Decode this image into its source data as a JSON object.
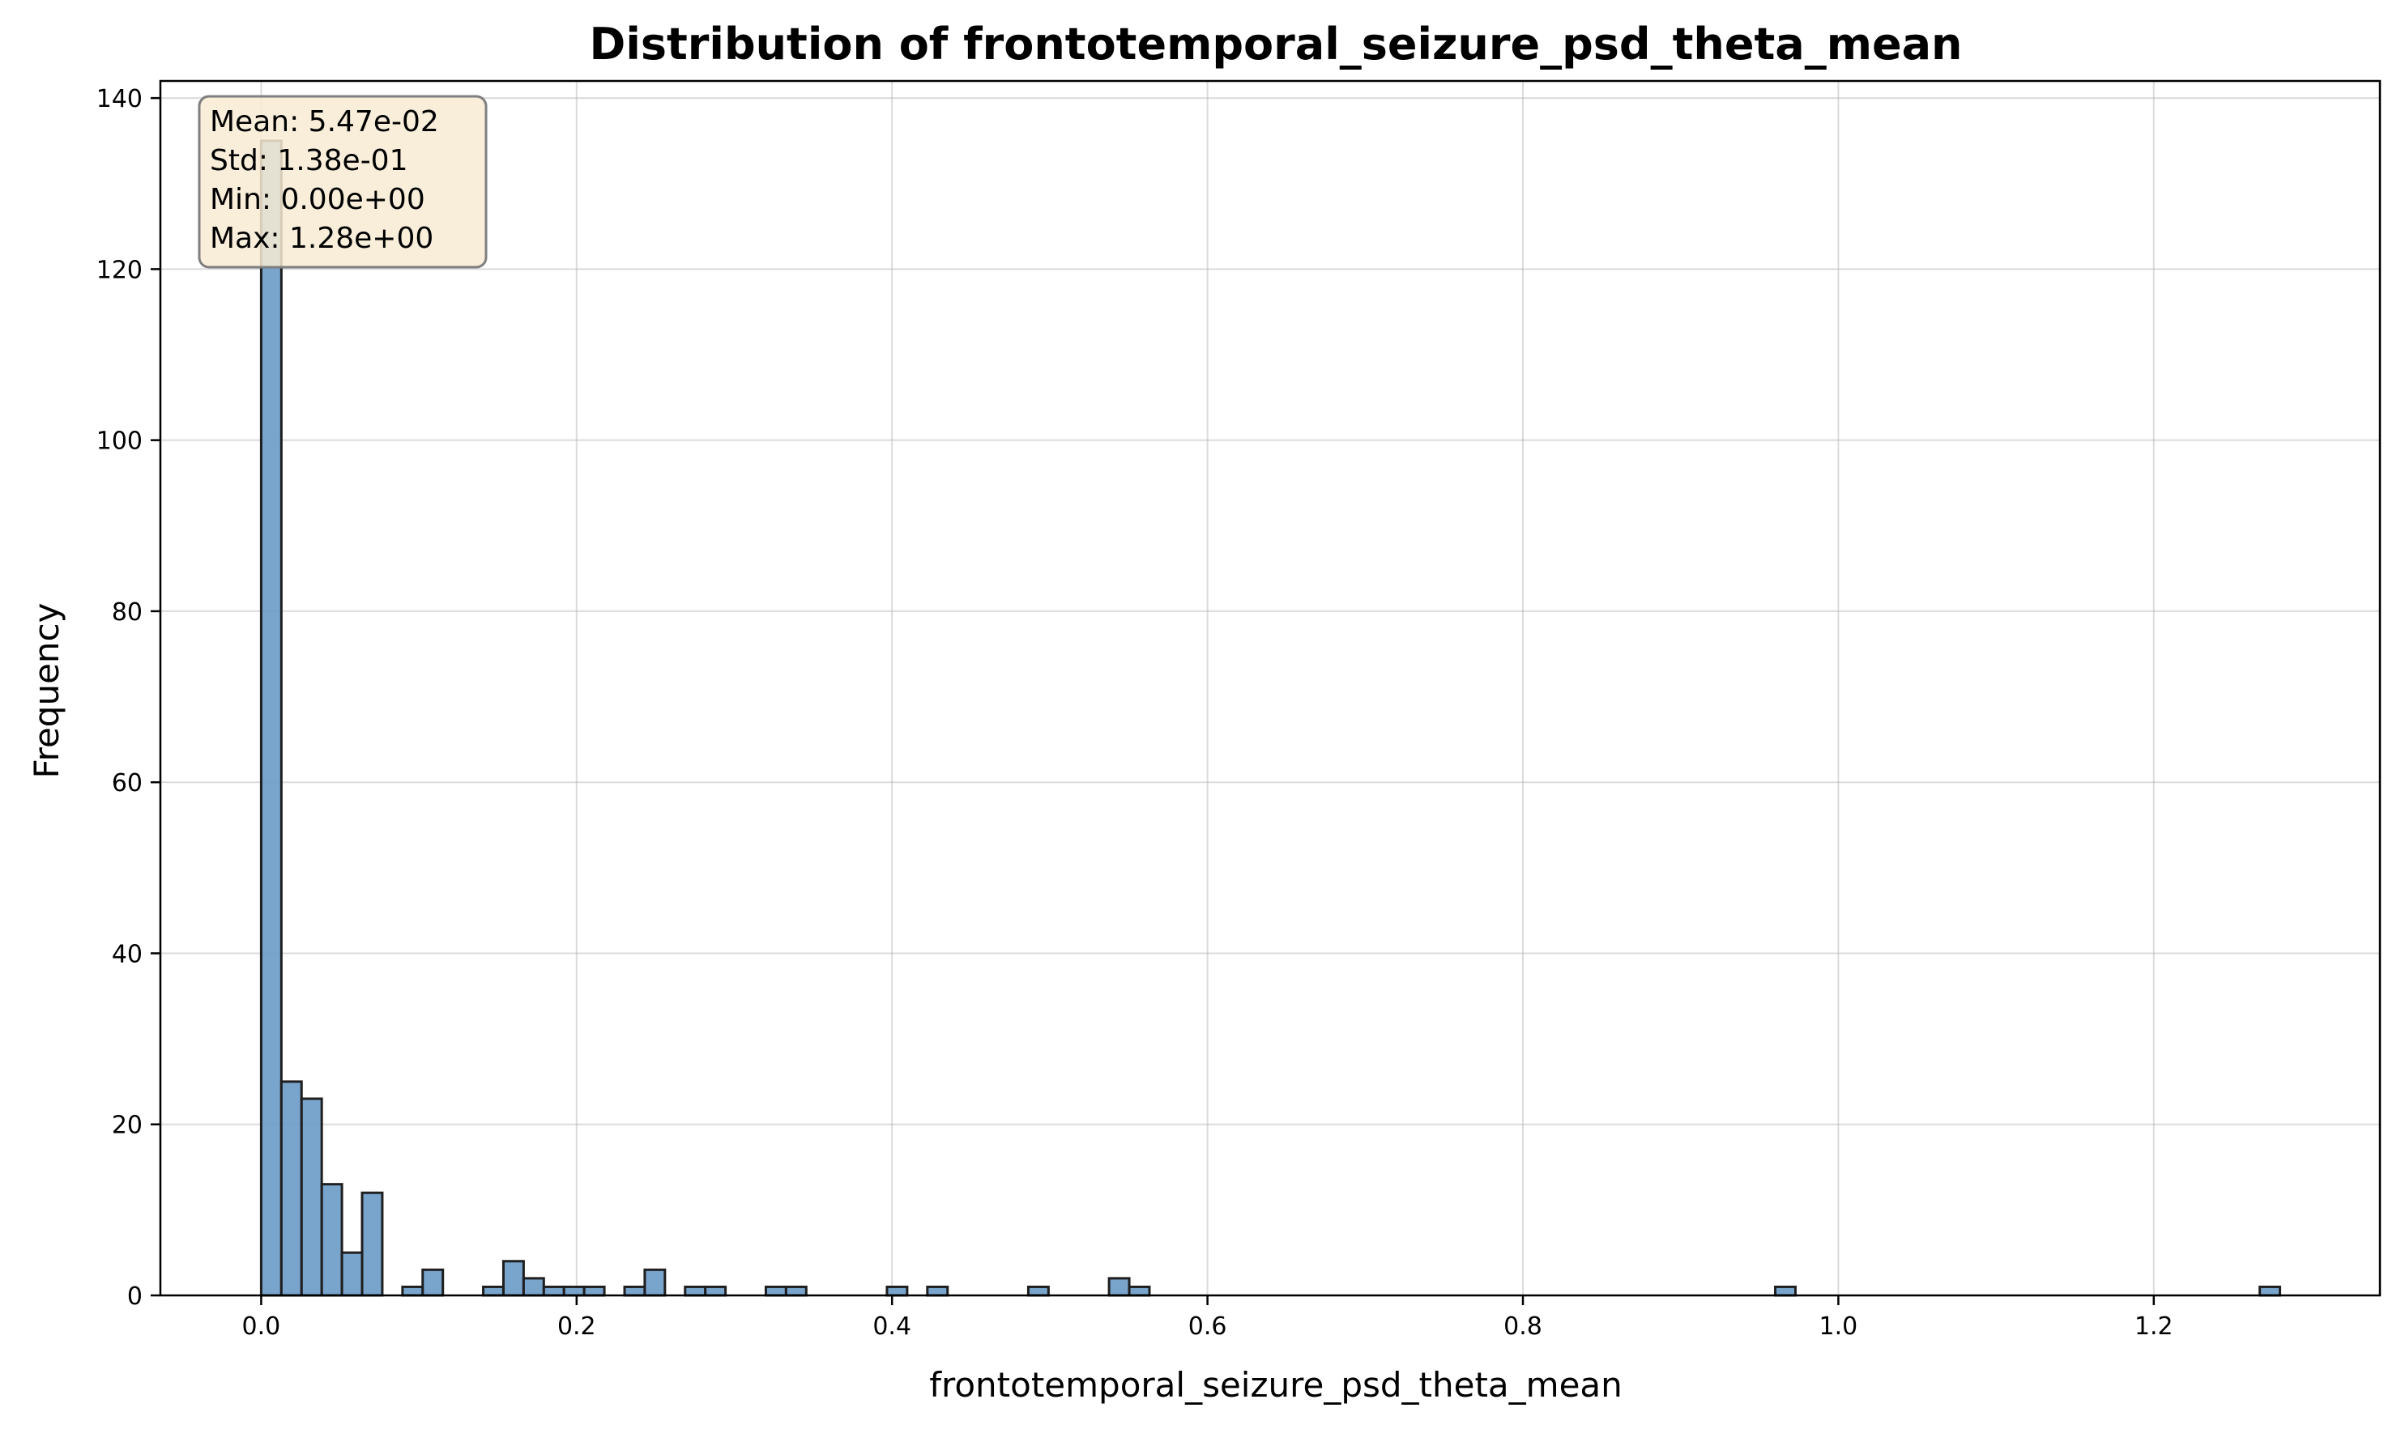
{
  "chart_data": {
    "type": "bar",
    "title": "Distribution of frontotemporal_seizure_psd_theta_mean",
    "xlabel": "frontotemporal_seizure_psd_theta_mean",
    "ylabel": "Frequency",
    "xlim": [
      -0.0639,
      1.3434
    ],
    "ylim": [
      0,
      142
    ],
    "x_ticks": [
      0.0,
      0.2,
      0.4,
      0.6,
      0.8,
      1.0,
      1.2
    ],
    "x_tick_labels": [
      "0.0",
      "0.2",
      "0.4",
      "0.6",
      "0.8",
      "1.0",
      "1.2"
    ],
    "y_ticks": [
      0,
      20,
      40,
      60,
      80,
      100,
      120,
      140
    ],
    "y_tick_labels": [
      "0",
      "20",
      "40",
      "60",
      "80",
      "100",
      "120",
      "140"
    ],
    "grid": true,
    "bar_color": "#6a9bc8",
    "edge_color": "#1f1f1f",
    "bins": {
      "start": 0.0,
      "width": 0.0128,
      "counts": [
        135,
        25,
        23,
        13,
        5,
        12,
        0,
        1,
        3,
        0,
        0,
        1,
        4,
        2,
        1,
        1,
        1,
        0,
        1,
        3,
        0,
        1,
        1,
        0,
        0,
        1,
        1,
        0,
        0,
        0,
        0,
        1,
        0,
        1,
        0,
        0,
        0,
        0,
        1,
        0,
        0,
        0,
        2,
        1,
        0,
        0,
        0,
        0,
        0,
        0,
        0,
        0,
        0,
        0,
        0,
        0,
        0,
        0,
        0,
        0,
        0,
        0,
        0,
        0,
        0,
        0,
        0,
        0,
        0,
        0,
        0,
        0,
        0,
        0,
        0,
        1,
        0,
        0,
        0,
        0,
        0,
        0,
        0,
        0,
        0,
        0,
        0,
        0,
        0,
        0,
        0,
        0,
        0,
        0,
        0,
        0,
        0,
        0,
        0,
        1
      ]
    },
    "stats_box": {
      "lines": [
        "Mean: 5.47e-02",
        "Std: 1.38e-01",
        "Min: 0.00e+00",
        "Max: 1.28e+00"
      ],
      "background": "#f7ebd4",
      "border": "#7f7f7f"
    }
  }
}
